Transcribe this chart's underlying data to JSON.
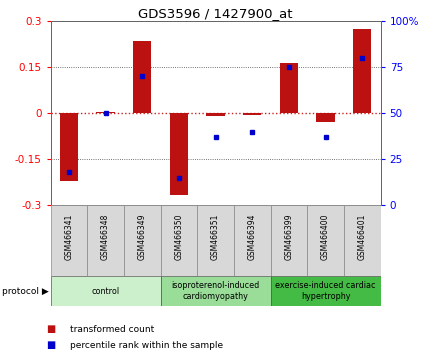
{
  "title": "GDS3596 / 1427900_at",
  "samples": [
    "GSM466341",
    "GSM466348",
    "GSM466349",
    "GSM466350",
    "GSM466351",
    "GSM466394",
    "GSM466399",
    "GSM466400",
    "GSM466401"
  ],
  "transformed_counts": [
    -0.22,
    0.005,
    0.235,
    -0.265,
    -0.01,
    -0.005,
    0.165,
    -0.03,
    0.275
  ],
  "percentile_ranks": [
    18,
    50,
    70,
    15,
    37,
    40,
    75,
    37,
    80
  ],
  "groups": [
    {
      "label": "control",
      "indices": [
        0,
        1,
        2
      ],
      "color": "#ccf0cc"
    },
    {
      "label": "isoproterenol-induced\ncardiomyopathy",
      "indices": [
        3,
        4,
        5
      ],
      "color": "#99dd99"
    },
    {
      "label": "exercise-induced cardiac\nhypertrophy",
      "indices": [
        6,
        7,
        8
      ],
      "color": "#44bb44"
    }
  ],
  "ylim_left": [
    -0.3,
    0.3
  ],
  "ylim_right": [
    0,
    100
  ],
  "yticks_left": [
    -0.3,
    -0.15,
    0.0,
    0.15,
    0.3
  ],
  "ytick_labels_left": [
    "-0.3",
    "-0.15",
    "0",
    "0.15",
    "0.3"
  ],
  "yticks_right": [
    0,
    25,
    50,
    75,
    100
  ],
  "ytick_labels_right": [
    "0",
    "25",
    "50",
    "75",
    "100%"
  ],
  "bar_color": "#bb1111",
  "dot_color": "#0000cc",
  "zero_line_color": "#cc2222",
  "grid_color": "#444444",
  "background_color": "#ffffff"
}
